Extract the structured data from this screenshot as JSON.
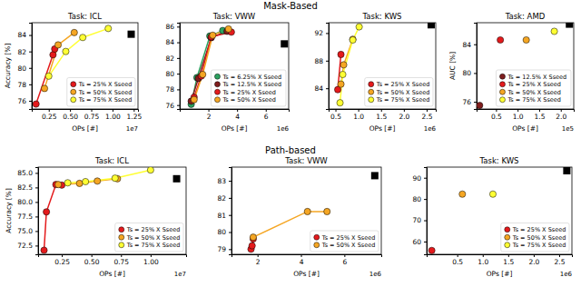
{
  "chart_data": [
    {
      "type": "line",
      "row_title": "Mask-Based",
      "title": "Task: ICL",
      "x_label": "OPs [#]",
      "x_offset": "1e7",
      "y_label": "Accuracy [%]",
      "xlim": [
        0.05,
        1.3
      ],
      "xticks": [
        0.25,
        {
          "value": 0.5,
          "label": "0.50"
        },
        0.75,
        {
          "value": 1.0,
          "label": "1.00"
        },
        1.25
      ],
      "ylim": [
        75,
        85.5
      ],
      "yticks": [
        76,
        78,
        80,
        82,
        84
      ],
      "legend": "lower right",
      "marker": "circle",
      "series": [
        {
          "name": "Ts = 25% X Sseed",
          "color": "#e41a1c",
          "x": [
            0.1,
            0.3,
            0.32
          ],
          "values": [
            75.6,
            81.6,
            82.3
          ]
        },
        {
          "name": "Ts = 50% X Sseed",
          "color": "#f5a623",
          "x": [
            0.2,
            0.36,
            0.55
          ],
          "values": [
            77.5,
            82.8,
            84.3
          ]
        },
        {
          "name": "Ts = 75% X Sseed",
          "color": "#ffff33",
          "x": [
            0.25,
            0.45,
            0.65,
            0.95
          ],
          "values": [
            79.0,
            82.0,
            83.7,
            84.8
          ]
        }
      ],
      "reference": {
        "x": 1.22,
        "y": 84.1,
        "color": "#000000",
        "marker": "square"
      }
    },
    {
      "type": "line",
      "title": "Task: VWW",
      "x_label": "OPs [#]",
      "x_offset": "1e6",
      "xlim": [
        0,
        7.6
      ],
      "xticks": [
        2,
        4,
        6
      ],
      "ylim": [
        75.5,
        86.5
      ],
      "yticks": [
        76,
        78,
        80,
        82,
        84,
        86
      ],
      "legend": "lower right",
      "marker": "circle",
      "series": [
        {
          "name": "Ts = 6.25% X Sseed",
          "color": "#2ca25f",
          "x": [
            0.8,
            1.2,
            2.1,
            3.0
          ],
          "values": [
            76.1,
            79.5,
            84.8,
            85.5
          ]
        },
        {
          "name": "Ts = 12.5% X Sseed",
          "color": "#7f1d1d",
          "x": [
            0.8,
            1.3,
            2.2,
            3.3
          ],
          "values": [
            76.5,
            79.4,
            84.6,
            85.4
          ]
        },
        {
          "name": "Ts = 25% X Sseed",
          "color": "#e41a1c",
          "x": [
            1.0,
            1.5,
            2.2,
            3.6
          ],
          "values": [
            77.0,
            79.7,
            84.7,
            85.3
          ]
        },
        {
          "name": "Ts = 50% X Sseed",
          "color": "#f5a623",
          "x": [
            1.0,
            1.6,
            2.3,
            3.4
          ],
          "values": [
            76.7,
            79.9,
            84.9,
            85.7
          ]
        }
      ],
      "reference": {
        "x": 7.3,
        "y": 83.8,
        "color": "#000000",
        "marker": "square"
      }
    },
    {
      "type": "line",
      "title": "Task: KWS",
      "x_label": "OPs [#]",
      "x_offset": "1e6",
      "xlim": [
        0.35,
        2.7
      ],
      "xticks": [
        0.5,
        {
          "value": 1.0,
          "label": "1.0"
        },
        1.5,
        {
          "value": 2.0,
          "label": "2.0"
        },
        2.5
      ],
      "ylim": [
        81,
        93.5
      ],
      "yticks": [
        84,
        88,
        92
      ],
      "legend": "lower right",
      "marker": "circle",
      "series": [
        {
          "name": "Ts = 25% X Sseed",
          "color": "#e41a1c",
          "x": [
            0.55,
            0.62
          ],
          "values": [
            83.8,
            88.9
          ]
        },
        {
          "name": "Ts = 50% X Sseed",
          "color": "#f5a623",
          "x": [
            0.62,
            0.68,
            0.88
          ],
          "values": [
            84.6,
            87.4,
            91.1
          ]
        },
        {
          "name": "Ts = 75% X Sseed",
          "color": "#ffff33",
          "x": [
            0.6,
            0.66,
            0.88,
            1.02
          ],
          "values": [
            81.9,
            86.0,
            91.0,
            92.9
          ]
        }
      ],
      "reference": {
        "x": 2.6,
        "y": 93.2,
        "color": "#000000",
        "marker": "square"
      }
    },
    {
      "type": "scatter",
      "title": "Task: AMD",
      "x_label": "OPs [#]",
      "x_offset": "1e5",
      "y_label": "AUC [%]",
      "xlim": [
        0.05,
        2.3
      ],
      "xticks": [
        0.5,
        {
          "value": 1.0,
          "label": "1.0"
        },
        1.5,
        {
          "value": 2.0,
          "label": "2.0"
        }
      ],
      "ylim": [
        75,
        87
      ],
      "yticks": [
        76,
        80,
        84
      ],
      "legend": "lower right",
      "marker": "circle",
      "series": [
        {
          "name": "Ts = 12.5% X Sseed",
          "color": "#7f1d1d",
          "x": [
            0.12
          ],
          "values": [
            75.5
          ]
        },
        {
          "name": "Ts = 25% X Sseed",
          "color": "#e41a1c",
          "x": [
            0.6
          ],
          "values": [
            84.6
          ]
        },
        {
          "name": "Ts = 50% X Sseed",
          "color": "#f5a623",
          "x": [
            1.2
          ],
          "values": [
            84.6
          ]
        },
        {
          "name": "Ts = 75% X Sseed",
          "color": "#ffff33",
          "x": [
            1.85
          ],
          "values": [
            85.8
          ]
        }
      ],
      "reference": {
        "x": 2.2,
        "y": 86.8,
        "color": "#000000",
        "marker": "square"
      }
    },
    {
      "type": "line",
      "row_title": "Path-based",
      "title": "Task: ICL",
      "x_label": "OPs [#]",
      "x_offset": "1e7",
      "y_label": "Accuracy [%]",
      "xlim": [
        0.05,
        1.3
      ],
      "xticks": [
        0.25,
        {
          "value": 0.5,
          "label": "0.50"
        },
        0.75,
        {
          "value": 1.0,
          "label": "1.00"
        }
      ],
      "ylim": [
        71,
        86
      ],
      "yticks": [
        72.5,
        {
          "value": 75,
          "label": "75.0"
        },
        77.5,
        {
          "value": 80,
          "label": "80.0"
        },
        82.5,
        {
          "value": 85,
          "label": "85.0"
        }
      ],
      "legend": "lower right",
      "marker": "circle",
      "series": [
        {
          "name": "Ts = 25% X Sseed",
          "color": "#e41a1c",
          "x": [
            0.1,
            0.12,
            0.2,
            0.25
          ],
          "values": [
            71.7,
            78.3,
            83.0,
            82.9
          ]
        },
        {
          "name": "Ts = 50% X Sseed",
          "color": "#f5a623",
          "x": [
            0.22,
            0.4,
            0.55,
            0.72
          ],
          "values": [
            83.0,
            83.2,
            83.6,
            84.0
          ]
        },
        {
          "name": "Ts = 75% X Sseed",
          "color": "#ffff33",
          "x": [
            0.3,
            0.45,
            0.7,
            1.0
          ],
          "values": [
            83.3,
            83.5,
            84.1,
            85.5
          ]
        }
      ],
      "reference": {
        "x": 1.22,
        "y": 84.0,
        "color": "#000000",
        "marker": "square"
      }
    },
    {
      "type": "line",
      "title": "Task: VWW",
      "x_label": "OPs [#]",
      "x_offset": "1e6",
      "xlim": [
        0.8,
        7.7
      ],
      "xticks": [
        2,
        4,
        6
      ],
      "ylim": [
        78.7,
        83.8
      ],
      "yticks": [
        79,
        80,
        81,
        82,
        83
      ],
      "legend": "lower right",
      "marker": "circle",
      "series": [
        {
          "name": "Ts = 25% X Sseed",
          "color": "#e41a1c",
          "x": [
            1.7,
            1.75,
            1.8
          ],
          "values": [
            79.0,
            79.2,
            79.6
          ]
        },
        {
          "name": "Ts = 50% X Sseed",
          "color": "#f5a623",
          "x": [
            1.8,
            4.3,
            5.2
          ],
          "values": [
            79.7,
            81.2,
            81.2
          ]
        }
      ],
      "reference": {
        "x": 7.4,
        "y": 83.3,
        "color": "#000000",
        "marker": "square"
      }
    },
    {
      "type": "scatter",
      "title": "Task: KWS",
      "x_label": "OPs [#]",
      "x_offset": "1e6",
      "xlim": [
        -0.1,
        2.75
      ],
      "xticks": [
        0.5,
        {
          "value": 1.0,
          "label": "1.0"
        },
        1.5,
        {
          "value": 2.0,
          "label": "2.0"
        },
        2.5
      ],
      "ylim": [
        54,
        95
      ],
      "yticks": [
        60,
        70,
        80,
        90
      ],
      "legend": "lower right",
      "marker": "circle",
      "series": [
        {
          "name": "Ts = 25% X Sseed",
          "color": "#e41a1c",
          "x": [
            0.0
          ],
          "values": [
            55.8
          ]
        },
        {
          "name": "Ts = 50% X Sseed",
          "color": "#f5a623",
          "x": [
            0.6
          ],
          "values": [
            82.3
          ]
        },
        {
          "name": "Ts = 75% X Sseed",
          "color": "#ffff33",
          "x": [
            1.2
          ],
          "values": [
            82.3
          ]
        }
      ],
      "reference": {
        "x": 2.65,
        "y": 93.3,
        "color": "#000000",
        "marker": "square"
      }
    }
  ]
}
